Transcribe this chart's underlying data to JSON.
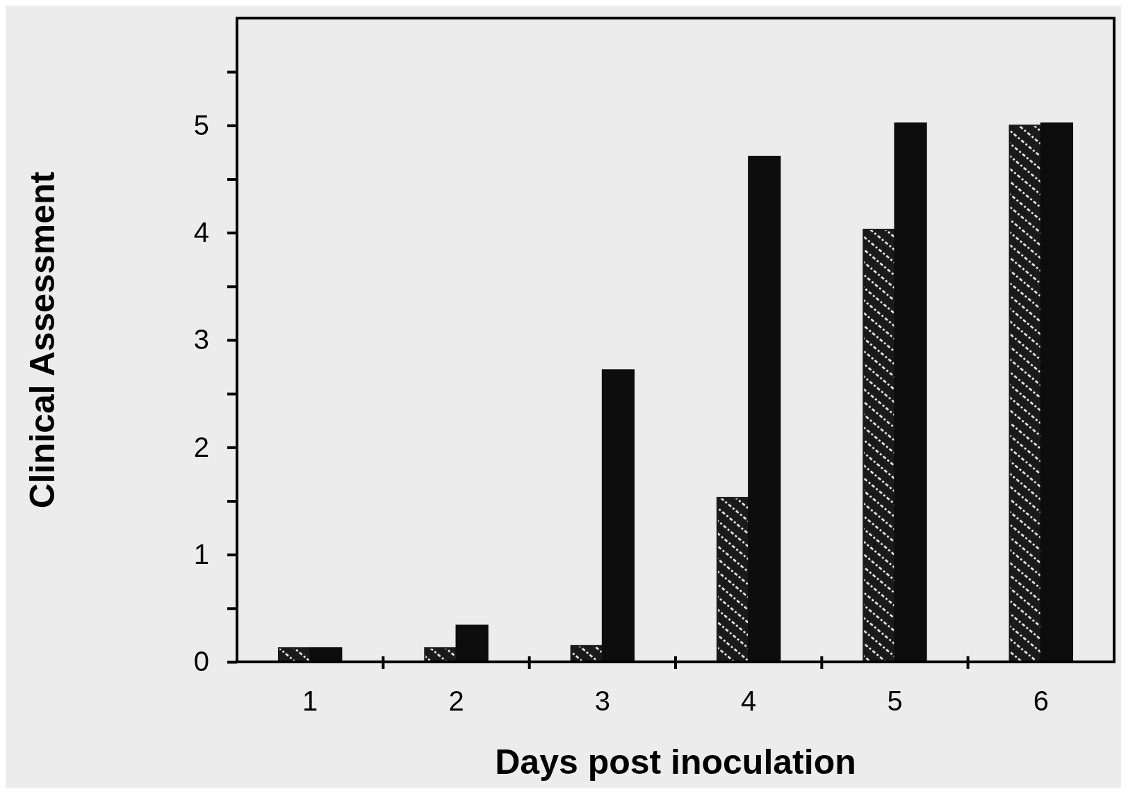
{
  "chart_data": {
    "type": "bar",
    "xlabel": "Days  post  inoculation",
    "ylabel": "Clinical  Assessment",
    "categories": [
      "1",
      "2",
      "3",
      "4",
      "5",
      "6"
    ],
    "series": [
      {
        "color": "#1a1a1a",
        "values": [
          0.13,
          0.13,
          0.15,
          1.53,
          4.03,
          5.0
        ]
      },
      {
        "color": "#0d0d0d",
        "values": [
          0.13,
          0.34,
          2.72,
          4.71,
          5.02,
          5.02
        ]
      }
    ],
    "ylim": [
      0,
      6
    ],
    "yticks": [
      0,
      {
        "value": 0.5,
        "label": null
      },
      1,
      {
        "value": 1.5,
        "label": null
      },
      2,
      {
        "value": 2.5,
        "label": null
      },
      3,
      {
        "value": 3.5,
        "label": null
      },
      4,
      {
        "value": 4.5,
        "label": null
      },
      5,
      {
        "value": 5.5,
        "label": null
      }
    ],
    "grid": false
  }
}
